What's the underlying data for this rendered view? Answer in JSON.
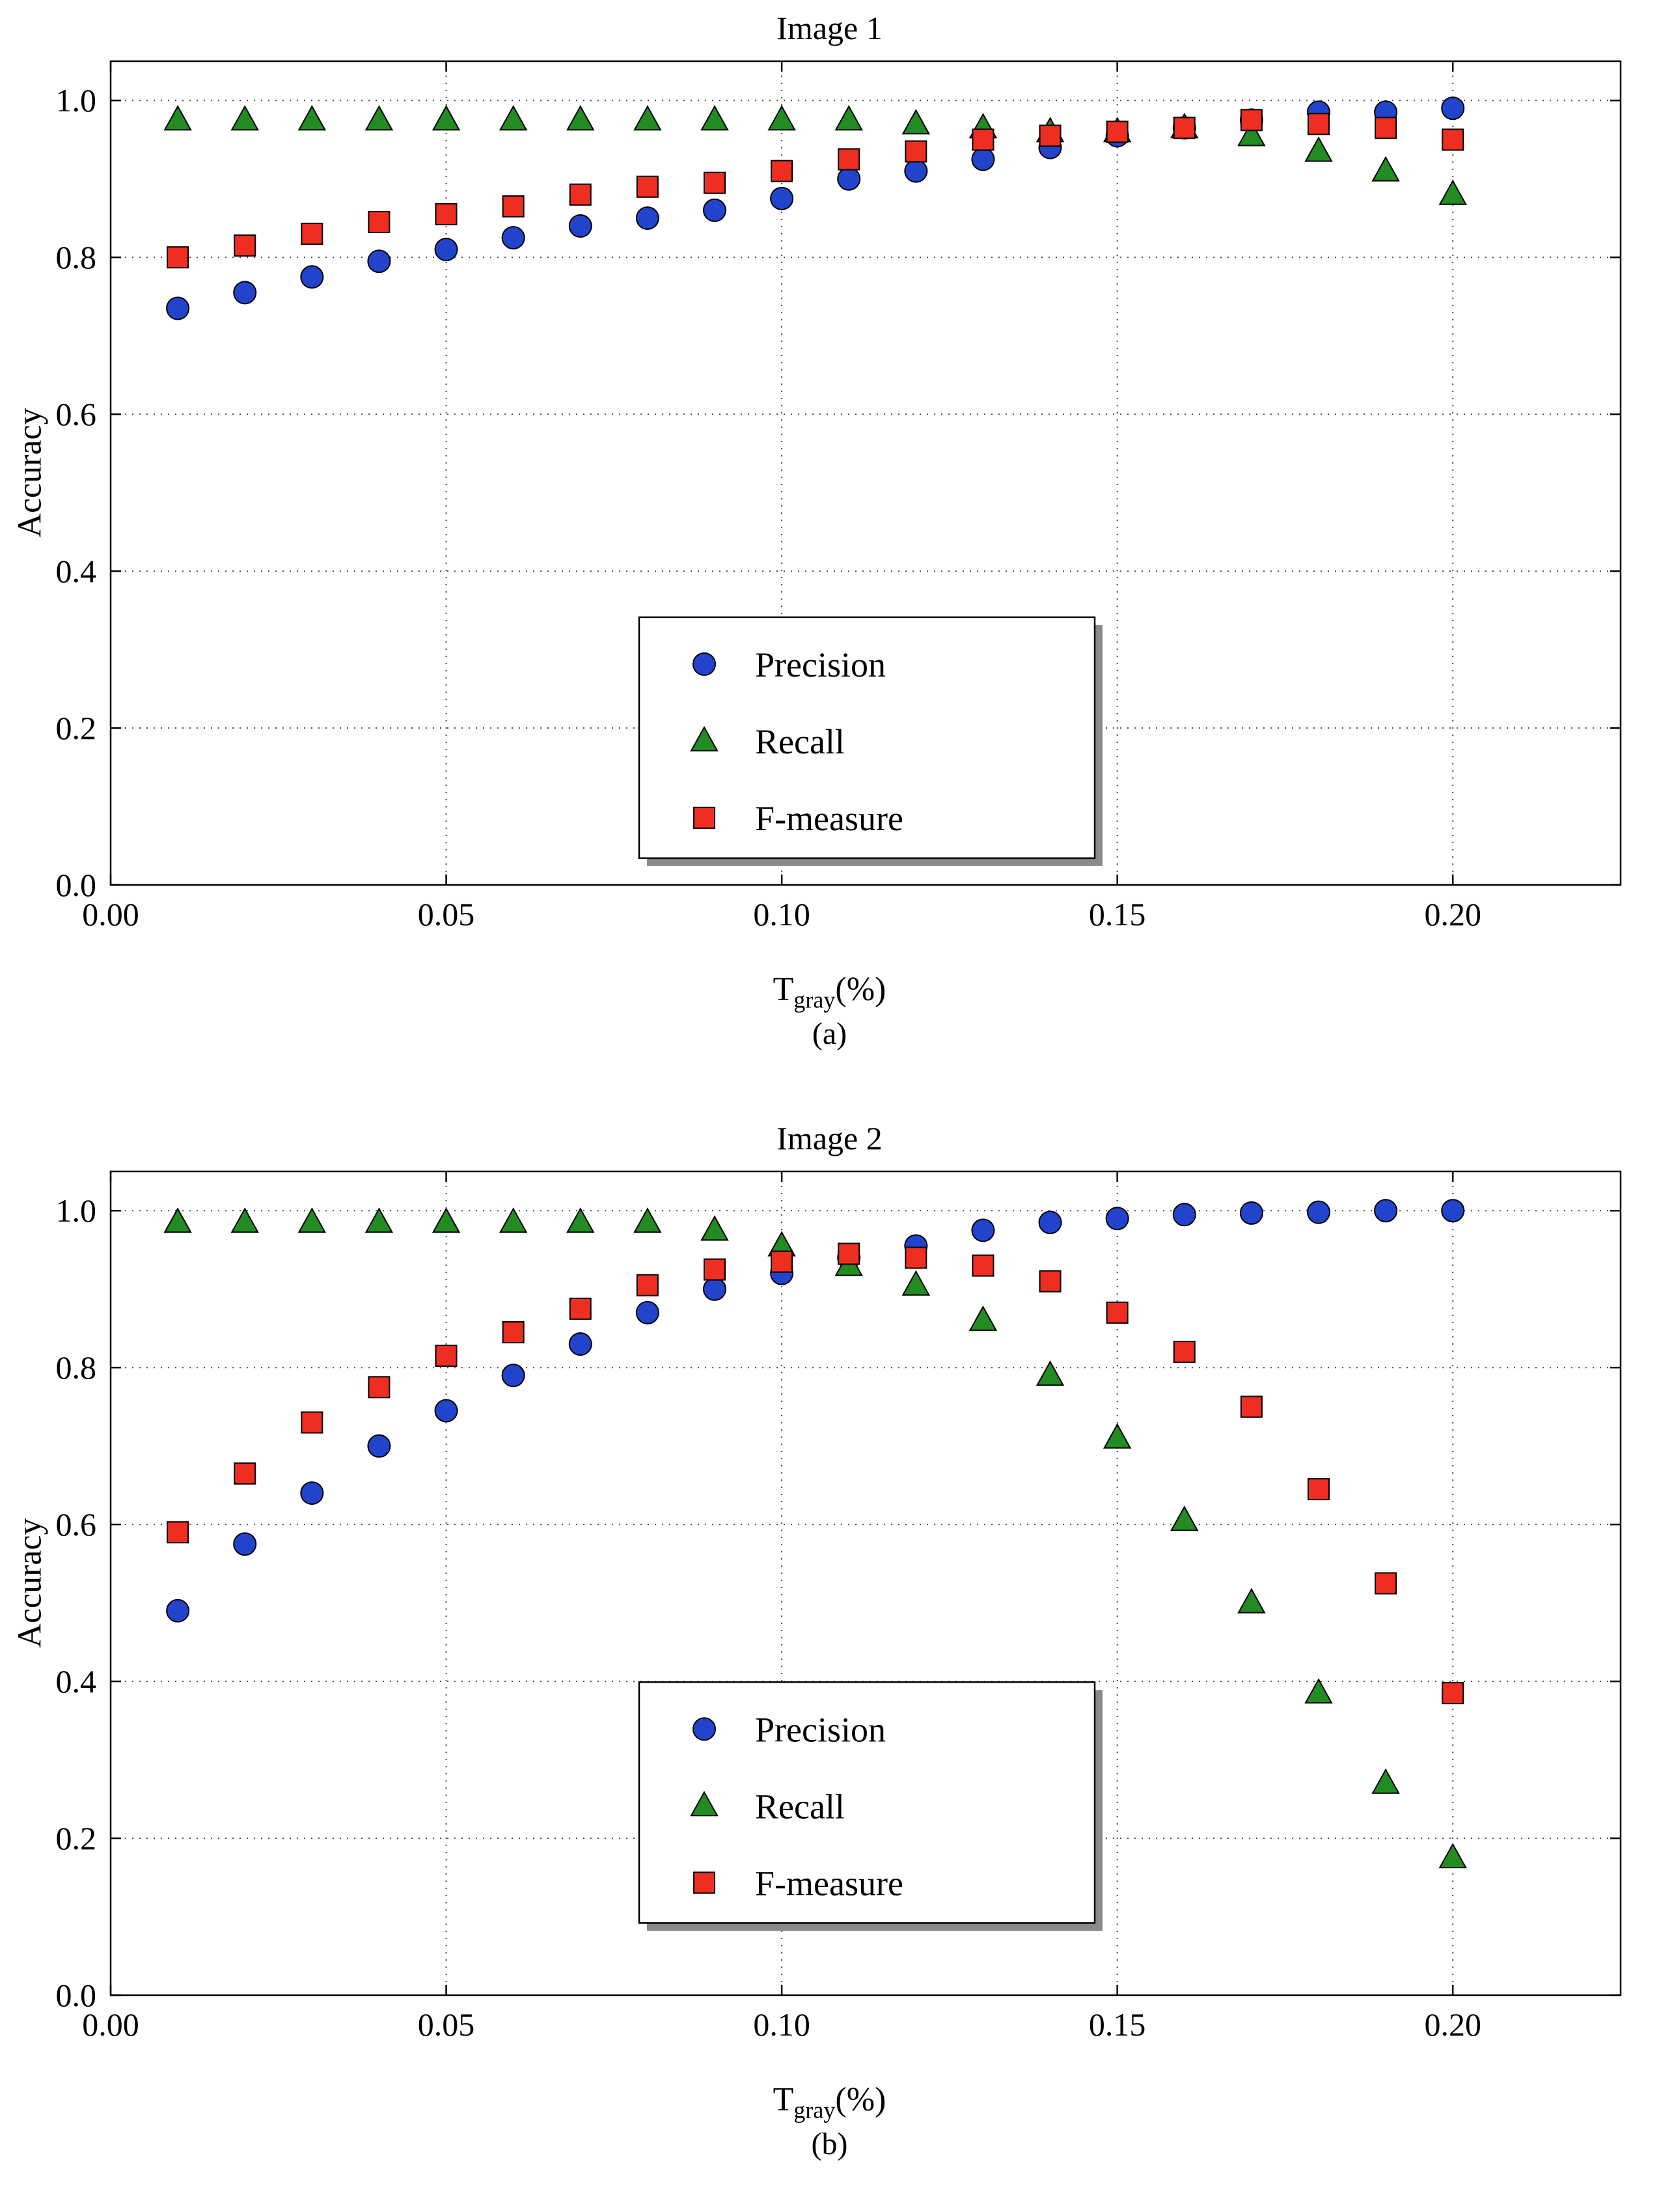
{
  "chart_data": [
    {
      "type": "scatter",
      "title": "Image 1",
      "caption": "(a)",
      "xlabel": "T_gray(%)",
      "xlabel_main": "T",
      "xlabel_sub": "gray",
      "xlabel_suffix": "(%)",
      "ylabel": "Accuracy",
      "xlim": [
        0,
        0.225
      ],
      "ylim": [
        0,
        1.05
      ],
      "xticks": [
        0,
        0.05,
        0.1,
        0.15,
        0.2
      ],
      "yticks": [
        0,
        0.2,
        0.4,
        0.6,
        0.8,
        1.0
      ],
      "xtick_decimals": 2,
      "ytick_decimals": 1,
      "grid": true,
      "legend": {
        "x": 0.35,
        "y": 0.675
      },
      "x": [
        0.01,
        0.02,
        0.03,
        0.04,
        0.05,
        0.06,
        0.07,
        0.08,
        0.09,
        0.1,
        0.11,
        0.12,
        0.13,
        0.14,
        0.15,
        0.16,
        0.17,
        0.18,
        0.19,
        0.2
      ],
      "series": [
        {
          "name": "Precision",
          "marker": "circle",
          "color": "#2244cc",
          "values": [
            0.735,
            0.755,
            0.775,
            0.795,
            0.81,
            0.825,
            0.84,
            0.85,
            0.86,
            0.875,
            0.9,
            0.91,
            0.925,
            0.94,
            0.955,
            0.965,
            0.975,
            0.985,
            0.985,
            0.99
          ]
        },
        {
          "name": "Recall",
          "marker": "triangle",
          "color": "#228b22",
          "values": [
            0.975,
            0.975,
            0.975,
            0.975,
            0.975,
            0.975,
            0.975,
            0.975,
            0.975,
            0.975,
            0.975,
            0.97,
            0.965,
            0.96,
            0.96,
            0.965,
            0.955,
            0.935,
            0.91,
            0.88
          ]
        },
        {
          "name": "F-measure",
          "marker": "square",
          "color": "#ee2e20",
          "values": [
            0.8,
            0.815,
            0.83,
            0.845,
            0.855,
            0.865,
            0.88,
            0.89,
            0.895,
            0.91,
            0.925,
            0.935,
            0.95,
            0.955,
            0.96,
            0.965,
            0.975,
            0.97,
            0.965,
            0.95
          ]
        }
      ]
    },
    {
      "type": "scatter",
      "title": "Image 2",
      "caption": "(b)",
      "xlabel": "T_gray(%)",
      "xlabel_main": "T",
      "xlabel_sub": "gray",
      "xlabel_suffix": "(%)",
      "ylabel": "Accuracy",
      "xlim": [
        0,
        0.225
      ],
      "ylim": [
        0,
        1.05
      ],
      "xticks": [
        0,
        0.05,
        0.1,
        0.15,
        0.2
      ],
      "yticks": [
        0,
        0.2,
        0.4,
        0.6,
        0.8,
        1.0
      ],
      "xtick_decimals": 2,
      "ytick_decimals": 1,
      "grid": true,
      "legend": {
        "x": 0.35,
        "y": 0.62
      },
      "x": [
        0.01,
        0.02,
        0.03,
        0.04,
        0.05,
        0.06,
        0.07,
        0.08,
        0.09,
        0.1,
        0.11,
        0.12,
        0.13,
        0.14,
        0.15,
        0.16,
        0.17,
        0.18,
        0.19,
        0.2
      ],
      "series": [
        {
          "name": "Precision",
          "marker": "circle",
          "color": "#2244cc",
          "values": [
            0.49,
            0.575,
            0.64,
            0.7,
            0.745,
            0.79,
            0.83,
            0.87,
            0.9,
            0.92,
            0.94,
            0.955,
            0.975,
            0.985,
            0.99,
            0.995,
            0.997,
            0.998,
            1.0,
            1.0
          ]
        },
        {
          "name": "Recall",
          "marker": "triangle",
          "color": "#228b22",
          "values": [
            0.985,
            0.985,
            0.985,
            0.985,
            0.985,
            0.985,
            0.985,
            0.985,
            0.975,
            0.955,
            0.93,
            0.905,
            0.86,
            0.79,
            0.71,
            0.605,
            0.5,
            0.385,
            0.27,
            0.175
          ]
        },
        {
          "name": "F-measure",
          "marker": "square",
          "color": "#ee2e20",
          "values": [
            0.59,
            0.665,
            0.73,
            0.775,
            0.815,
            0.845,
            0.875,
            0.905,
            0.925,
            0.935,
            0.945,
            0.94,
            0.93,
            0.91,
            0.87,
            0.82,
            0.75,
            0.645,
            0.525,
            0.385
          ]
        }
      ]
    }
  ]
}
